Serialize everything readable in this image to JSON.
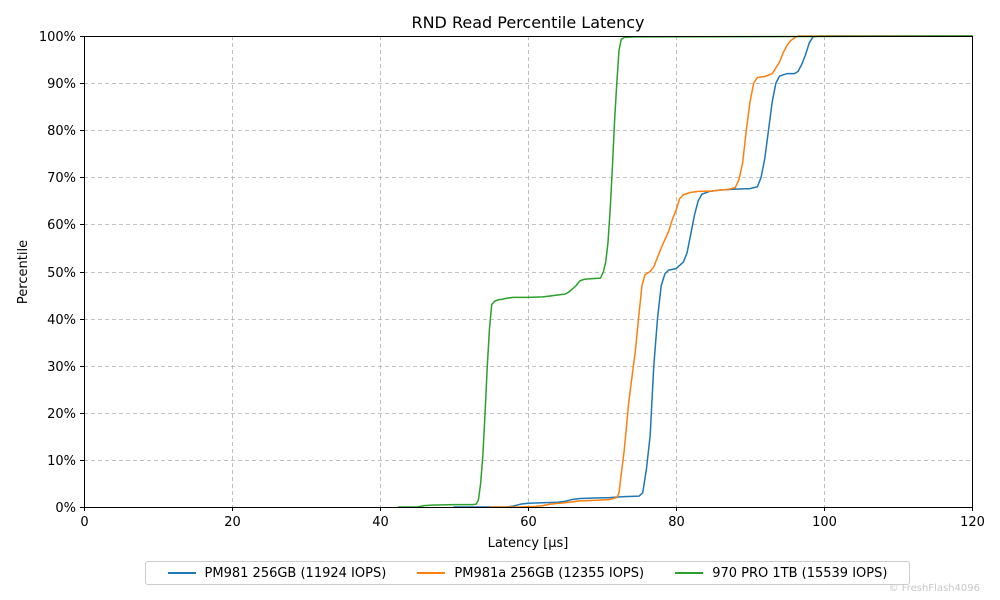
{
  "chart_data": {
    "type": "line",
    "title": "RND Read Percentile Latency",
    "xlabel": "Latency [µs]",
    "ylabel": "Percentile",
    "xlim": [
      0,
      120
    ],
    "ylim": [
      0,
      100
    ],
    "x_ticks": [
      0,
      20,
      40,
      60,
      80,
      100,
      120
    ],
    "y_ticks": [
      0,
      10,
      20,
      30,
      40,
      50,
      60,
      70,
      80,
      90,
      100
    ],
    "y_tick_suffix": "%",
    "grid": true,
    "legend_position": "bottom-center",
    "series": [
      {
        "name": "PM981 256GB (11924 IOPS)",
        "color": "#1f77b4",
        "points": [
          [
            50,
            0
          ],
          [
            57,
            0
          ],
          [
            58,
            0.2
          ],
          [
            59,
            0.6
          ],
          [
            60,
            0.8
          ],
          [
            62,
            0.9
          ],
          [
            64,
            1.0
          ],
          [
            65,
            1.2
          ],
          [
            66,
            1.6
          ],
          [
            67,
            1.8
          ],
          [
            69,
            1.9
          ],
          [
            71,
            2.0
          ],
          [
            73,
            2.2
          ],
          [
            75,
            2.3
          ],
          [
            75.5,
            3
          ],
          [
            76,
            8
          ],
          [
            76.5,
            15
          ],
          [
            77,
            30
          ],
          [
            77.5,
            40
          ],
          [
            78,
            47
          ],
          [
            78.5,
            49.5
          ],
          [
            79,
            50.3
          ],
          [
            80,
            50.6
          ],
          [
            81,
            52
          ],
          [
            81.5,
            54
          ],
          [
            82,
            58
          ],
          [
            82.5,
            62
          ],
          [
            83,
            65
          ],
          [
            83.5,
            66.4
          ],
          [
            84.5,
            67
          ],
          [
            86,
            67.3
          ],
          [
            88,
            67.5
          ],
          [
            90,
            67.6
          ],
          [
            91,
            68
          ],
          [
            91.5,
            70
          ],
          [
            92,
            74
          ],
          [
            92.5,
            80
          ],
          [
            93,
            86
          ],
          [
            93.5,
            90
          ],
          [
            94,
            91.5
          ],
          [
            95,
            92
          ],
          [
            96,
            92
          ],
          [
            96.5,
            92.5
          ],
          [
            97,
            94
          ],
          [
            97.5,
            96
          ],
          [
            98,
            98.5
          ],
          [
            98.5,
            99.8
          ],
          [
            99.5,
            100
          ],
          [
            120,
            100
          ]
        ]
      },
      {
        "name": "PM981a 256GB (12355 IOPS)",
        "color": "#ff7f0e",
        "points": [
          [
            55,
            0
          ],
          [
            59,
            0
          ],
          [
            61,
            0.1
          ],
          [
            62,
            0.3
          ],
          [
            63,
            0.6
          ],
          [
            65,
            0.9
          ],
          [
            66,
            1.1
          ],
          [
            67,
            1.3
          ],
          [
            69,
            1.4
          ],
          [
            71,
            1.6
          ],
          [
            72,
            2.0
          ],
          [
            72.3,
            3
          ],
          [
            72.6,
            7
          ],
          [
            73,
            12
          ],
          [
            73.3,
            17
          ],
          [
            73.6,
            22
          ],
          [
            74,
            27
          ],
          [
            74.5,
            33
          ],
          [
            75,
            41
          ],
          [
            75.4,
            47
          ],
          [
            75.8,
            49.3
          ],
          [
            76.5,
            50
          ],
          [
            77,
            51
          ],
          [
            77.5,
            53
          ],
          [
            78,
            55
          ],
          [
            79,
            58.5
          ],
          [
            79.5,
            61
          ],
          [
            80,
            63
          ],
          [
            80.5,
            65.5
          ],
          [
            81,
            66.3
          ],
          [
            82,
            66.8
          ],
          [
            83,
            67
          ],
          [
            85,
            67.1
          ],
          [
            86,
            67.3
          ],
          [
            87,
            67.4
          ],
          [
            88,
            67.8
          ],
          [
            88.5,
            69.5
          ],
          [
            89,
            73
          ],
          [
            89.5,
            80
          ],
          [
            90,
            86
          ],
          [
            90.5,
            90
          ],
          [
            91,
            91.2
          ],
          [
            92,
            91.4
          ],
          [
            93,
            92
          ],
          [
            94,
            94.5
          ],
          [
            94.5,
            96.5
          ],
          [
            95,
            98
          ],
          [
            95.5,
            99
          ],
          [
            96,
            99.6
          ],
          [
            96.5,
            100
          ],
          [
            120,
            100
          ]
        ]
      },
      {
        "name": "970 PRO 1TB (15539 IOPS)",
        "color": "#2ca02c",
        "points": [
          [
            42.5,
            0
          ],
          [
            45,
            0
          ],
          [
            46,
            0.3
          ],
          [
            47,
            0.4
          ],
          [
            50,
            0.5
          ],
          [
            52.5,
            0.5
          ],
          [
            53,
            0.6
          ],
          [
            53.3,
            1.5
          ],
          [
            53.6,
            5
          ],
          [
            53.9,
            11
          ],
          [
            54.2,
            20
          ],
          [
            54.5,
            30
          ],
          [
            54.8,
            38
          ],
          [
            55.1,
            43
          ],
          [
            55.5,
            43.7
          ],
          [
            56,
            44
          ],
          [
            56.5,
            44.1
          ],
          [
            57,
            44.3
          ],
          [
            58,
            44.5
          ],
          [
            60,
            44.5
          ],
          [
            62,
            44.6
          ],
          [
            63,
            44.8
          ],
          [
            64,
            45
          ],
          [
            65,
            45.2
          ],
          [
            65.5,
            45.6
          ],
          [
            66,
            46.3
          ],
          [
            66.5,
            47
          ],
          [
            67,
            48
          ],
          [
            67.5,
            48.3
          ],
          [
            68,
            48.4
          ],
          [
            69,
            48.5
          ],
          [
            69.8,
            48.6
          ],
          [
            70.2,
            50
          ],
          [
            70.5,
            52
          ],
          [
            70.8,
            56
          ],
          [
            71.1,
            63
          ],
          [
            71.4,
            72
          ],
          [
            71.7,
            82
          ],
          [
            72,
            90
          ],
          [
            72.3,
            97
          ],
          [
            72.6,
            99.3
          ],
          [
            73,
            99.7
          ],
          [
            74,
            99.8
          ],
          [
            120,
            100
          ]
        ]
      }
    ]
  },
  "watermark": "© FreshFlash4096"
}
